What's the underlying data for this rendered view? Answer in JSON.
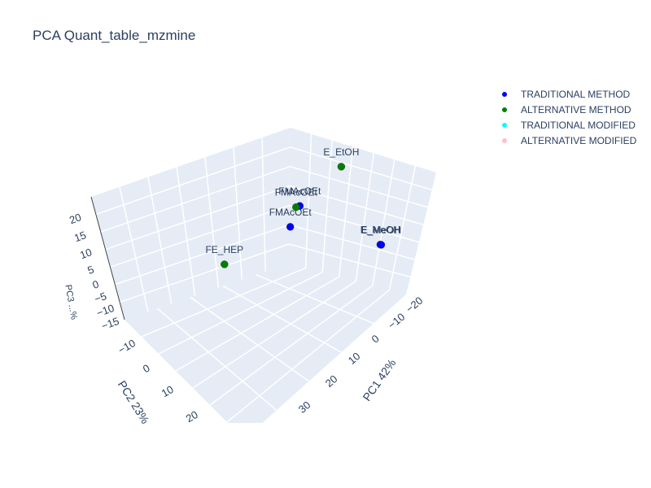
{
  "chart_data": {
    "type": "scatter3d",
    "title": "PCA Quant_table_mzmine",
    "xlabel": "PC1 42%",
    "ylabel": "PC2 23%",
    "zlabel": "PC3 ...%",
    "xticks": [
      "−20",
      "−10",
      "0",
      "10",
      "20",
      "30"
    ],
    "yticks": [
      "−10",
      "0",
      "10",
      "20"
    ],
    "zticks": [
      "20",
      "15",
      "10",
      "5",
      "0",
      "−5",
      "−10",
      "−15"
    ],
    "legend_position": "top-right",
    "series": [
      {
        "name": "TRADITIONAL METHOD",
        "color": "#0000ff",
        "points": [
          {
            "label": "E_MeOH",
            "pc1": 30,
            "pc2": -14,
            "pc3": -2
          },
          {
            "label": "E_MeOH",
            "pc1": 30.5,
            "pc2": -14,
            "pc3": -2
          },
          {
            "label": "FMAcOEt",
            "pc1": 2,
            "pc2": -4,
            "pc3": 3
          },
          {
            "label": "FMAcOEt",
            "pc1": 1,
            "pc2": -7,
            "pc3": 8
          }
        ]
      },
      {
        "name": "ALTERNATIVE METHOD",
        "color": "#008000",
        "points": [
          {
            "label": "E_EtOH",
            "pc1": 5,
            "pc2": -16,
            "pc3": 17
          },
          {
            "label": "FMAcOEt",
            "pc1": 1,
            "pc2": -6,
            "pc3": 8
          },
          {
            "label": "FE_HEP",
            "pc1": -5,
            "pc2": 10,
            "pc3": -4
          }
        ]
      },
      {
        "name": "TRADITIONAL MODIFIED",
        "color": "#00ffff",
        "points": []
      },
      {
        "name": "ALTERNATIVE MODIFIED",
        "color": "#ffc0cb",
        "points": []
      }
    ],
    "grid": true,
    "background_color": "#e5ecf6"
  }
}
